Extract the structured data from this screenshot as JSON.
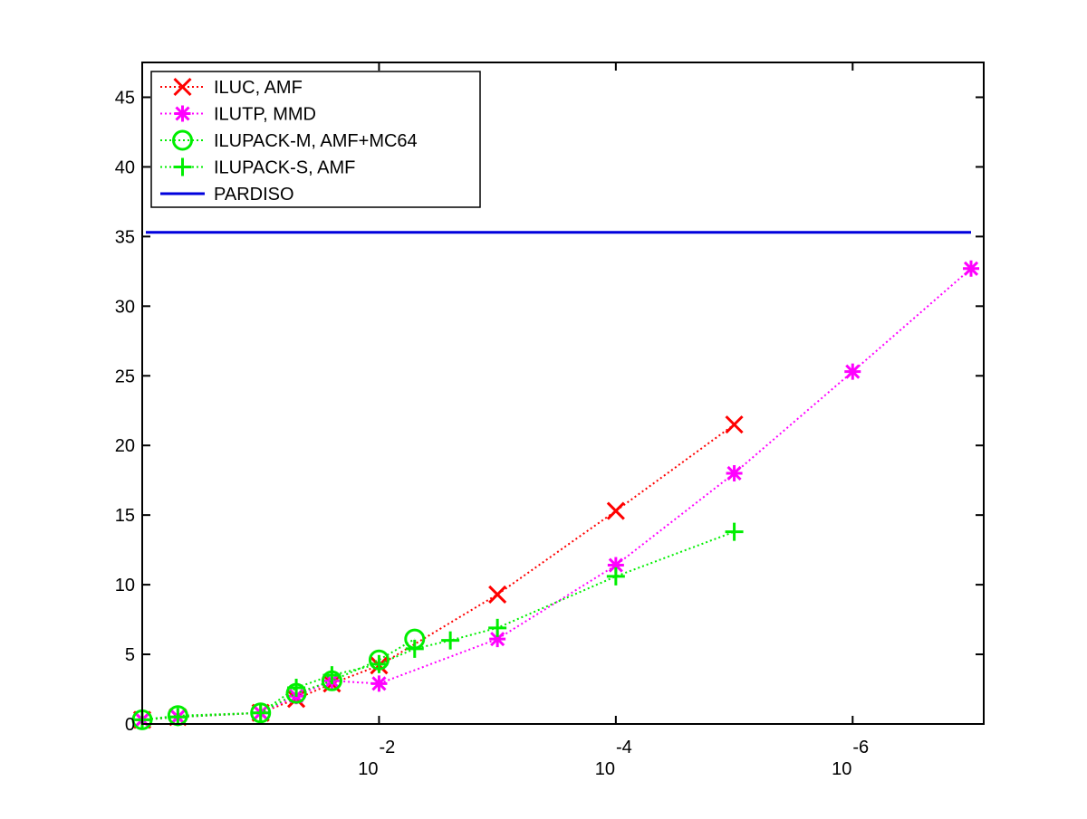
{
  "chart_data": {
    "type": "line",
    "x_scale": "log-reversed",
    "xlim": [
      1,
      1e-07
    ],
    "ylim": [
      0,
      47.5
    ],
    "grid": false,
    "legend_position": "top-left",
    "x_ticks": [
      {
        "value": 0.01,
        "base": "10",
        "exp": "-2"
      },
      {
        "value": 0.0001,
        "base": "10",
        "exp": "-4"
      },
      {
        "value": 1e-06,
        "base": "10",
        "exp": "-6"
      }
    ],
    "y_ticks": [
      "0",
      "5",
      "10",
      "15",
      "20",
      "25",
      "30",
      "35",
      "40",
      "45"
    ],
    "series": [
      {
        "name": "ILUC, AMF",
        "color": "#ff0000",
        "marker": "x",
        "line": "dotted",
        "x": [
          1,
          0.5,
          0.1,
          0.05,
          0.025,
          0.01,
          0.001,
          0.0001,
          1e-05
        ],
        "y": [
          0.3,
          0.5,
          0.8,
          1.8,
          2.9,
          4.2,
          9.3,
          15.3,
          21.5
        ]
      },
      {
        "name": "ILUTP, MMD",
        "color": "#ff00ff",
        "marker": "asterisk",
        "line": "dotted",
        "x": [
          1,
          0.5,
          0.1,
          0.05,
          0.025,
          0.01,
          0.001,
          0.0001,
          1e-05,
          1e-06,
          1e-07
        ],
        "y": [
          0.3,
          0.5,
          0.8,
          2.0,
          3.1,
          2.9,
          6.1,
          11.4,
          18.0,
          25.3,
          32.7
        ]
      },
      {
        "name": "ILUPACK-M, AMF+MC64",
        "color": "#00ee00",
        "marker": "circle",
        "line": "dotted",
        "x": [
          1,
          0.5,
          0.1,
          0.05,
          0.025,
          0.01,
          0.005
        ],
        "y": [
          0.3,
          0.6,
          0.8,
          2.2,
          3.1,
          4.6,
          6.1
        ]
      },
      {
        "name": "ILUPACK-S, AMF",
        "color": "#00ee00",
        "marker": "plus",
        "line": "dotted",
        "x": [
          1,
          0.5,
          0.1,
          0.05,
          0.025,
          0.01,
          0.005,
          0.0025,
          0.001,
          0.0001,
          1e-05
        ],
        "y": [
          0.3,
          0.5,
          0.8,
          2.6,
          3.5,
          4.3,
          5.4,
          6.0,
          6.9,
          10.6,
          13.8
        ]
      },
      {
        "name": "PARDISO",
        "color": "#0000dd",
        "marker": "none",
        "line": "solid",
        "x": [
          1,
          1e-07
        ],
        "y": [
          35.3,
          35.3
        ]
      }
    ]
  }
}
